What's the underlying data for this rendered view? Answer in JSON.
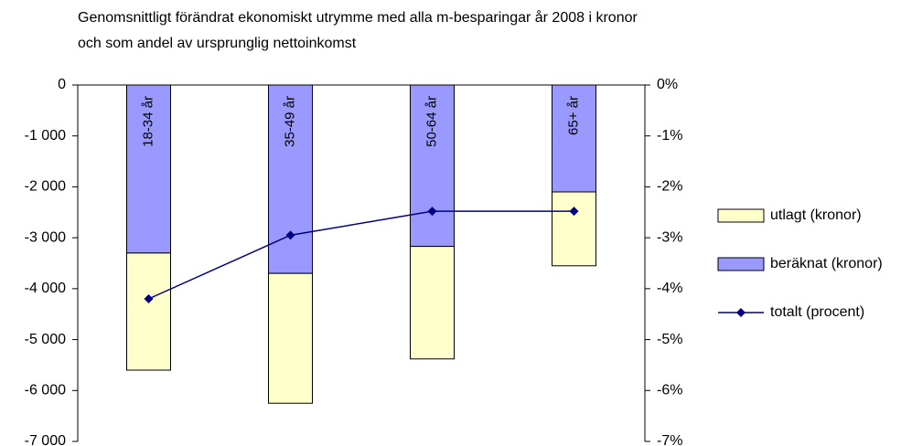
{
  "chart_data": {
    "type": "bar",
    "title": [
      "Genomsnittligt förändrat ekonomiskt utrymme med alla m-besparingar år 2008 i kronor",
      "och som andel av ursprunglig nettoinkomst"
    ],
    "categories": [
      "18-34 år",
      "35-49 år",
      "50-64 år",
      "65+ år"
    ],
    "series": [
      {
        "name": "utlagt (kronor)",
        "color": "#ffffcc",
        "values": [
          -2300,
          -2550,
          -2210,
          -1450
        ]
      },
      {
        "name": "beräknat (kronor)",
        "color": "#9999ff",
        "values": [
          -3300,
          -3700,
          -3170,
          -2100
        ]
      },
      {
        "name": "totalt (procent)",
        "color": "#000080",
        "type": "line",
        "axis": "y2",
        "values": [
          -4.2,
          -2.95,
          -2.48,
          -2.48
        ]
      }
    ],
    "ylim": [
      -7000,
      0
    ],
    "yticks": [
      0,
      {
        "value": -1000,
        "label": "-1 000"
      },
      {
        "value": -2000,
        "label": "-2 000"
      },
      {
        "value": -3000,
        "label": "-3 000"
      },
      {
        "value": -4000,
        "label": "-4 000"
      },
      {
        "value": -5000,
        "label": "-5 000"
      },
      {
        "value": -6000,
        "label": "-6 000"
      },
      {
        "value": -7000,
        "label": "-7 000"
      }
    ],
    "y2lim": [
      -7,
      0
    ],
    "y2ticks": [
      {
        "value": 0,
        "label": "0%"
      },
      {
        "value": -1,
        "label": "-1%"
      },
      {
        "value": -2,
        "label": "-2%"
      },
      {
        "value": -3,
        "label": "-3%"
      },
      {
        "value": -4,
        "label": "-4%"
      },
      {
        "value": -5,
        "label": "-5%"
      },
      {
        "value": -6,
        "label": "-6%"
      },
      {
        "value": -7,
        "label": "-7%"
      }
    ],
    "grid": false,
    "legend": "right"
  }
}
